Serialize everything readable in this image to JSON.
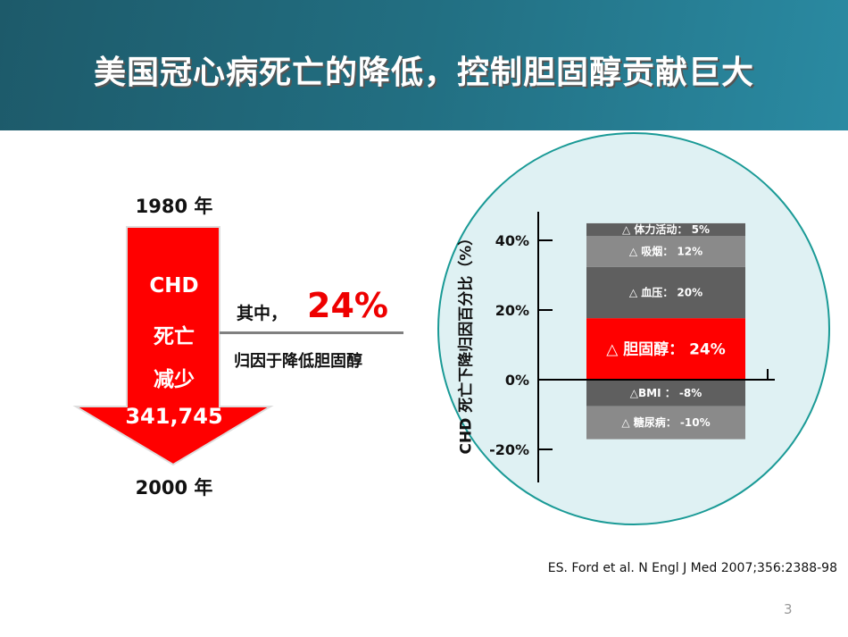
{
  "header": {
    "title": "美国冠心病死亡的降低，控制胆固醇贡献巨大"
  },
  "left_panel": {
    "year_start": "1980 年",
    "year_end": "2000 年",
    "arrow_lines": [
      "CHD",
      "死亡",
      "减少"
    ],
    "arrow_value": "341,745",
    "callout_prefix": "其中，",
    "callout_value": "24%",
    "callout_caption": "归因于降低胆固醇"
  },
  "colors": {
    "header": "#226f82",
    "arrow": "#ff0000",
    "circle_fill": "#dff1f3",
    "circle_border": "#1a9a96",
    "dark_gray": "#5f5f5f",
    "light_gray": "#8a8a8a",
    "highlight": "#ff0000"
  },
  "chart_data": {
    "type": "bar",
    "stacked": true,
    "ylabel": "CHD 死亡下降归因百分比（%）",
    "yticks": [
      "40%",
      "20%",
      "0%",
      "-20%"
    ],
    "ytick_values": [
      40,
      20,
      0,
      -20
    ],
    "ylim": [
      -30,
      45
    ],
    "segments": [
      {
        "label": "△ 胆固醇：  24%",
        "value": 24,
        "color": "#ff0000"
      },
      {
        "label": "△ 血压：  20%",
        "value": 20,
        "color": "#5f5f5f"
      },
      {
        "label": "△ 吸烟：  12%",
        "value": 12,
        "color": "#8a8a8a"
      },
      {
        "label": "△ 体力活动：  5%",
        "value": 5,
        "color": "#5f5f5f"
      },
      {
        "label": "△BMI ：  -8%",
        "value": -8,
        "color": "#5f5f5f"
      },
      {
        "label": "△ 糖尿病：  -10%",
        "value": -10,
        "color": "#8a8a8a"
      }
    ]
  },
  "footer": {
    "reference": "ES. Ford et al. N Engl J Med 2007;356:2388-98",
    "page_number": "3"
  }
}
